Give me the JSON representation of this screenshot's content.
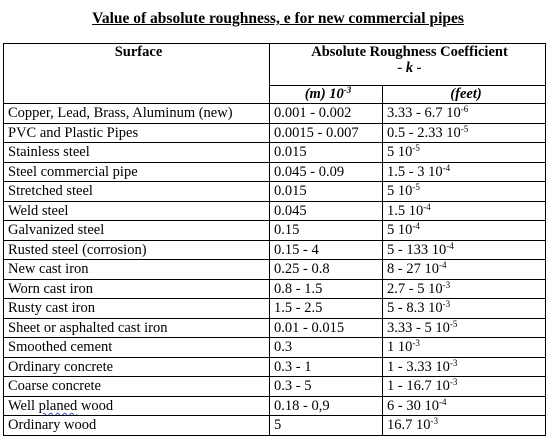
{
  "title": "Value of absolute roughness, e for new commercial pipes",
  "header": {
    "surface": "Surface",
    "coefficient": "Absolute Roughness Coefficient",
    "k": "- k -",
    "m_unit": "(m) 10",
    "m_exp": "-3",
    "feet_unit": "(feet)"
  },
  "rows": [
    {
      "surface": "Copper, Lead, Brass, Aluminum (new)",
      "m": "0.001 - 0.002",
      "ft_base": "3.33 - 6.7 10",
      "ft_exp": "-6"
    },
    {
      "surface": "PVC and Plastic Pipes",
      "m": "0.0015 - 0.007",
      "ft_base": "0.5 - 2.33 10",
      "ft_exp": "-5"
    },
    {
      "surface": "Stainless steel",
      "m": "0.015",
      "ft_base": "5 10",
      "ft_exp": "-5"
    },
    {
      "surface": "Steel commercial pipe",
      "m": "0.045 - 0.09",
      "ft_base": "1.5 - 3 10",
      "ft_exp": "-4"
    },
    {
      "surface": "Stretched steel",
      "m": "0.015",
      "ft_base": "5 10",
      "ft_exp": "-5"
    },
    {
      "surface": "Weld steel",
      "m": "0.045",
      "ft_base": "1.5 10",
      "ft_exp": "-4"
    },
    {
      "surface": "Galvanized steel",
      "m": "0.15",
      "ft_base": "5 10",
      "ft_exp": "-4"
    },
    {
      "surface": "Rusted steel (corrosion)",
      "m": "0.15 - 4",
      "ft_base": "5 - 133 10",
      "ft_exp": "-4"
    },
    {
      "surface": "New cast iron",
      "m": "0.25 - 0.8",
      "ft_base": "8 - 27 10",
      "ft_exp": "-4"
    },
    {
      "surface": "Worn cast iron",
      "m": "0.8 - 1.5",
      "ft_base": "2.7 - 5 10",
      "ft_exp": "-3"
    },
    {
      "surface": "Rusty cast iron",
      "m": "1.5 - 2.5",
      "ft_base": "5 - 8.3 10",
      "ft_exp": "-3"
    },
    {
      "surface": "Sheet or asphalted cast iron",
      "m": "0.01 - 0.015",
      "ft_base": "3.33 - 5 10",
      "ft_exp": "-5"
    },
    {
      "surface": "Smoothed cement",
      "m": "0.3",
      "ft_base": "1 10",
      "ft_exp": "-3"
    },
    {
      "surface": "Ordinary concrete",
      "m": "0.3 - 1",
      "ft_base": "1 - 3.33 10",
      "ft_exp": "-3"
    },
    {
      "surface": "Coarse concrete",
      "m": "0.3 - 5",
      "ft_base": "1 - 16.7 10",
      "ft_exp": "-3"
    },
    {
      "surface": "Well planed wood",
      "m": "0.18 - 0,9",
      "ft_base": "6 - 30 10",
      "ft_exp": "-4"
    },
    {
      "surface": "Ordinary wood",
      "m": "5",
      "ft_base": "16.7 10",
      "ft_exp": "-3"
    }
  ]
}
